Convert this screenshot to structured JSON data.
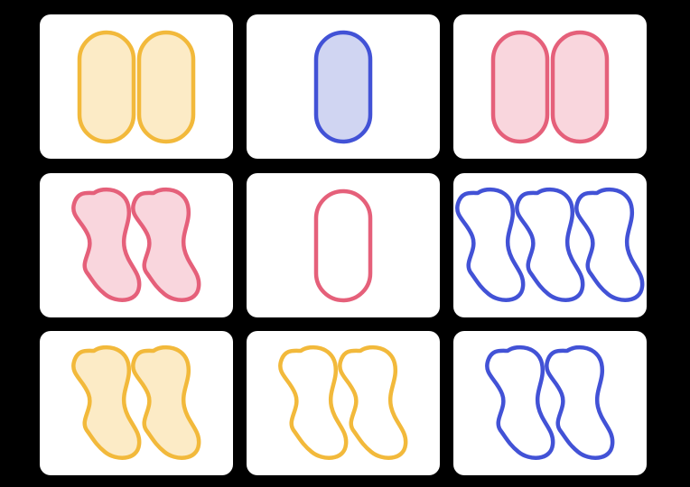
{
  "cards": [
    {
      "count": 2,
      "shape": "oval",
      "color": "yellow",
      "shading": "filled"
    },
    {
      "count": 1,
      "shape": "oval",
      "color": "blue",
      "shading": "filled"
    },
    {
      "count": 2,
      "shape": "oval",
      "color": "pink",
      "shading": "filled"
    },
    {
      "count": 2,
      "shape": "squiggle",
      "color": "pink",
      "shading": "filled"
    },
    {
      "count": 1,
      "shape": "oval",
      "color": "pink",
      "shading": "empty"
    },
    {
      "count": 3,
      "shape": "squiggle",
      "color": "blue",
      "shading": "empty"
    },
    {
      "count": 2,
      "shape": "squiggle",
      "color": "yellow",
      "shading": "filled"
    },
    {
      "count": 2,
      "shape": "squiggle",
      "color": "yellow",
      "shading": "empty"
    },
    {
      "count": 2,
      "shape": "squiggle",
      "color": "blue",
      "shading": "empty"
    }
  ],
  "palette": {
    "yellow": {
      "stroke": "#F2B93B",
      "fill": "#FCEBC6"
    },
    "blue": {
      "stroke": "#4252D6",
      "fill": "#D0D5F2"
    },
    "pink": {
      "stroke": "#E5607A",
      "fill": "#F9D6DD"
    }
  }
}
